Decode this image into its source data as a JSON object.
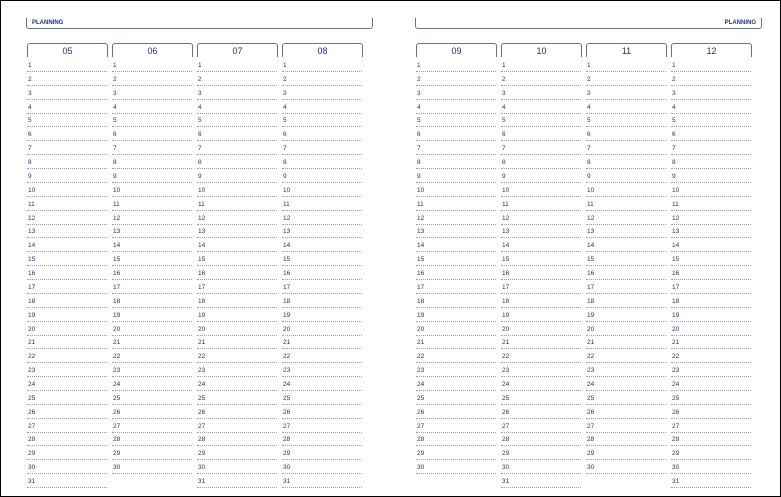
{
  "pages": [
    {
      "title": "PLANNING",
      "months": [
        {
          "label": "05",
          "days": [
            1,
            2,
            3,
            4,
            5,
            6,
            7,
            8,
            9,
            10,
            11,
            12,
            13,
            14,
            15,
            16,
            17,
            18,
            19,
            20,
            21,
            22,
            23,
            24,
            25,
            26,
            27,
            28,
            29,
            30,
            31
          ]
        },
        {
          "label": "06",
          "days": [
            1,
            2,
            3,
            4,
            5,
            6,
            7,
            8,
            9,
            10,
            11,
            12,
            13,
            14,
            15,
            16,
            17,
            18,
            19,
            20,
            21,
            22,
            23,
            24,
            25,
            26,
            27,
            28,
            29,
            30
          ]
        },
        {
          "label": "07",
          "days": [
            1,
            2,
            3,
            4,
            5,
            6,
            7,
            8,
            9,
            10,
            11,
            12,
            13,
            14,
            15,
            16,
            17,
            18,
            19,
            20,
            21,
            22,
            23,
            24,
            25,
            26,
            27,
            28,
            29,
            30,
            31
          ]
        },
        {
          "label": "08",
          "days": [
            1,
            2,
            3,
            4,
            5,
            6,
            7,
            8,
            9,
            10,
            11,
            12,
            13,
            14,
            15,
            16,
            17,
            18,
            19,
            20,
            21,
            22,
            23,
            24,
            25,
            26,
            27,
            28,
            29,
            30,
            31
          ]
        }
      ]
    },
    {
      "title": "PLANNING",
      "months": [
        {
          "label": "09",
          "days": [
            1,
            2,
            3,
            4,
            5,
            6,
            7,
            8,
            9,
            10,
            11,
            12,
            13,
            14,
            15,
            16,
            17,
            18,
            19,
            20,
            21,
            22,
            23,
            24,
            25,
            26,
            27,
            28,
            29,
            30
          ]
        },
        {
          "label": "10",
          "days": [
            1,
            2,
            3,
            4,
            5,
            6,
            7,
            8,
            9,
            10,
            11,
            12,
            13,
            14,
            15,
            16,
            17,
            18,
            19,
            20,
            21,
            22,
            23,
            24,
            25,
            26,
            27,
            28,
            29,
            30,
            31
          ]
        },
        {
          "label": "11",
          "days": [
            1,
            2,
            3,
            4,
            5,
            6,
            7,
            8,
            9,
            10,
            11,
            12,
            13,
            14,
            15,
            16,
            17,
            18,
            19,
            20,
            21,
            22,
            23,
            24,
            25,
            26,
            27,
            28,
            29,
            30
          ]
        },
        {
          "label": "12",
          "days": [
            1,
            2,
            3,
            4,
            5,
            6,
            7,
            8,
            9,
            10,
            11,
            12,
            13,
            14,
            15,
            16,
            17,
            18,
            19,
            20,
            21,
            22,
            23,
            24,
            25,
            26,
            27,
            28,
            29,
            30,
            31
          ]
        }
      ]
    }
  ]
}
